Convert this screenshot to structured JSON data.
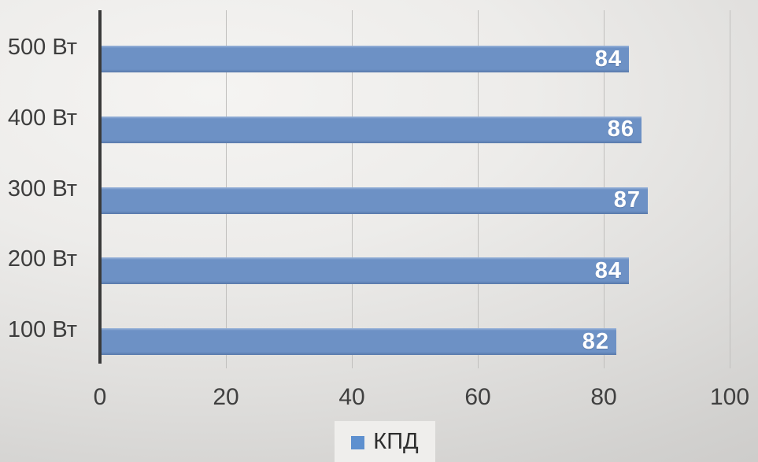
{
  "chart_data": {
    "type": "bar",
    "orientation": "horizontal",
    "title": "",
    "categories": [
      "500 Вт",
      "400 Вт",
      "300 Вт",
      "200 Вт",
      "100 Вт"
    ],
    "series": [
      {
        "name": "КПД",
        "values": [
          84,
          86,
          87,
          84,
          82
        ]
      }
    ],
    "xlim": [
      0,
      100
    ],
    "x_ticks": [
      0,
      20,
      40,
      60,
      80,
      100
    ],
    "grid": true,
    "legend_position": "bottom",
    "colors": {
      "bar": "#6d91c5",
      "legend_swatch": "#5e90cf",
      "axis": "#3a3a3a",
      "gridline": "#c0bfbd",
      "tick_text": "#404040",
      "value_text": "#ffffff"
    }
  }
}
